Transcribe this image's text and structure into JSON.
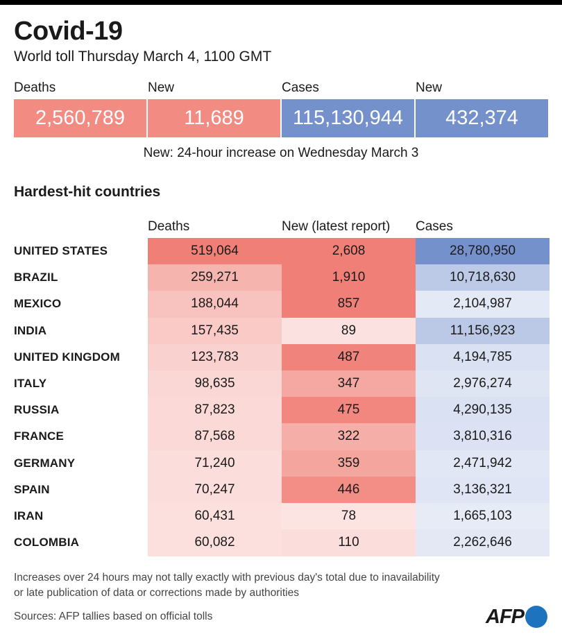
{
  "title": "Covid-19",
  "subtitle": "World toll Thursday March 4, 1100 GMT",
  "summary": {
    "deaths_label": "Deaths",
    "deaths_value": "2,560,789",
    "new_deaths_label": "New",
    "new_deaths_value": "11,689",
    "cases_label": "Cases",
    "cases_value": "115,130,944",
    "new_cases_label": "New",
    "new_cases_value": "432,374",
    "note": "New: 24-hour increase on Wednesday March 3"
  },
  "section_title": "Hardest-hit countries",
  "footnote_lines": [
    "Increases over 24 hours may not tally exactly with previous day's total due to inavailability",
    "or late publication of data or corrections made by authorities"
  ],
  "sources": "Sources: AFP tallies based on official tolls",
  "logo_text": "AFP",
  "colors": {
    "deaths_box": "#f28b82",
    "cases_box": "#7591cc",
    "red_scale_max": "#f08077",
    "blue_scale_max": "#7591cc",
    "red_scale_min": "#fdf0ef",
    "blue_scale_min": "#f0f2fa",
    "logo_dot": "#1e73be"
  },
  "chart_data": {
    "type": "table",
    "columns": [
      "Deaths",
      "New (latest report)",
      "Cases"
    ],
    "rows": [
      {
        "country": "UNITED STATES",
        "deaths": "519,064",
        "new": "2,608",
        "cases": "28,780,950"
      },
      {
        "country": "BRAZIL",
        "deaths": "259,271",
        "new": "1,910",
        "cases": "10,718,630"
      },
      {
        "country": "MEXICO",
        "deaths": "188,044",
        "new": "857",
        "cases": "2,104,987"
      },
      {
        "country": "INDIA",
        "deaths": "157,435",
        "new": "89",
        "cases": "11,156,923"
      },
      {
        "country": "UNITED KINGDOM",
        "deaths": "123,783",
        "new": "487",
        "cases": "4,194,785"
      },
      {
        "country": "ITALY",
        "deaths": "98,635",
        "new": "347",
        "cases": "2,976,274"
      },
      {
        "country": "RUSSIA",
        "deaths": "87,823",
        "new": "475",
        "cases": "4,290,135"
      },
      {
        "country": "FRANCE",
        "deaths": "87,568",
        "new": "322",
        "cases": "3,810,316"
      },
      {
        "country": "GERMANY",
        "deaths": "71,240",
        "new": "359",
        "cases": "2,471,942"
      },
      {
        "country": "SPAIN",
        "deaths": "70,247",
        "new": "446",
        "cases": "3,136,321"
      },
      {
        "country": "IRAN",
        "deaths": "60,431",
        "new": "78",
        "cases": "1,665,103"
      },
      {
        "country": "COLOMBIA",
        "deaths": "60,082",
        "new": "110",
        "cases": "2,262,646"
      }
    ]
  }
}
